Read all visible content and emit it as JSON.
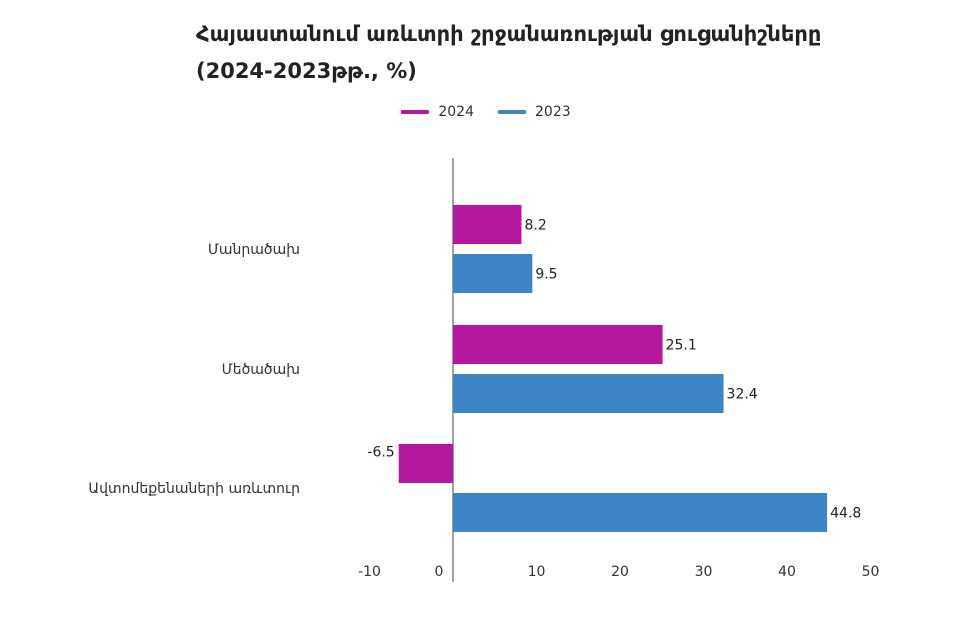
{
  "chart_data": {
    "type": "bar",
    "orientation": "horizontal",
    "title": "Հայաստանում առևտրի շրջանառության ցուցանիշները (2024-2023թթ., %)",
    "categories": [
      "Մանրածախ",
      "Մեծածախ",
      "Ավտոմեքենաների առևտուր"
    ],
    "series": [
      {
        "name": "2024",
        "color": "#b5179e",
        "values": [
          8.2,
          25.1,
          -6.5
        ]
      },
      {
        "name": "2023",
        "color": "#3d85c6",
        "values": [
          9.5,
          32.4,
          44.8
        ]
      }
    ],
    "xlim": [
      -10,
      50
    ],
    "xticks": [
      "-10",
      "0",
      "10",
      "20",
      "30",
      "40",
      "50"
    ],
    "legend_position": "top-center",
    "grid": false
  }
}
